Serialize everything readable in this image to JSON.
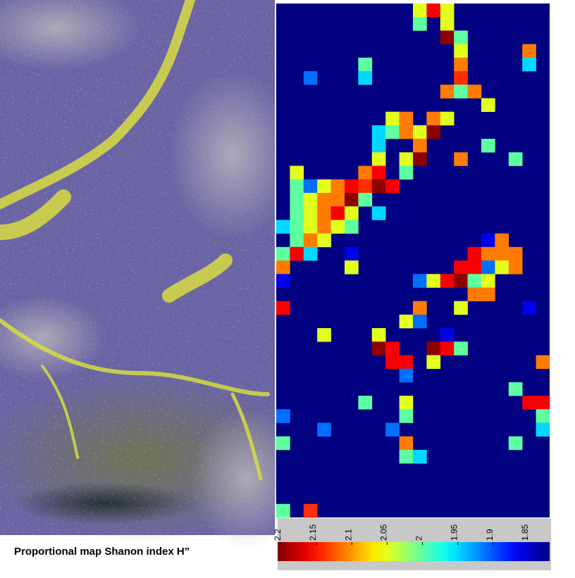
{
  "chart_data": {
    "type": "heatmap",
    "caption": "Proportional map Shanon index H”",
    "rows": 38,
    "cols": 20,
    "background_value": 1.82,
    "clim": [
      1.82,
      2.205
    ],
    "colormap": "jet",
    "colorbar_reversed": true,
    "colorbar_ticks": [
      2.2,
      2.15,
      2.1,
      2.05,
      2,
      1.95,
      1.9,
      1.85
    ],
    "cells": [
      {
        "row": 0,
        "col": 10,
        "value": 2.05
      },
      {
        "row": 0,
        "col": 11,
        "value": 2.16
      },
      {
        "row": 0,
        "col": 12,
        "value": 2.05
      },
      {
        "row": 1,
        "col": 10,
        "value": 2.0
      },
      {
        "row": 1,
        "col": 12,
        "value": 2.05
      },
      {
        "row": 2,
        "col": 12,
        "value": 2.2
      },
      {
        "row": 2,
        "col": 13,
        "value": 2.0
      },
      {
        "row": 3,
        "col": 13,
        "value": 2.05
      },
      {
        "row": 3,
        "col": 18,
        "value": 2.11
      },
      {
        "row": 4,
        "col": 6,
        "value": 2.0
      },
      {
        "row": 4,
        "col": 13,
        "value": 2.11
      },
      {
        "row": 4,
        "col": 18,
        "value": 1.95
      },
      {
        "row": 5,
        "col": 2,
        "value": 1.91
      },
      {
        "row": 5,
        "col": 6,
        "value": 1.95
      },
      {
        "row": 5,
        "col": 13,
        "value": 2.14
      },
      {
        "row": 6,
        "col": 12,
        "value": 2.11
      },
      {
        "row": 6,
        "col": 13,
        "value": 2.0
      },
      {
        "row": 6,
        "col": 14,
        "value": 2.11
      },
      {
        "row": 7,
        "col": 15,
        "value": 2.05
      },
      {
        "row": 8,
        "col": 8,
        "value": 2.05
      },
      {
        "row": 8,
        "col": 9,
        "value": 2.11
      },
      {
        "row": 8,
        "col": 11,
        "value": 2.11
      },
      {
        "row": 8,
        "col": 12,
        "value": 2.05
      },
      {
        "row": 9,
        "col": 7,
        "value": 1.95
      },
      {
        "row": 9,
        "col": 8,
        "value": 2.0
      },
      {
        "row": 9,
        "col": 9,
        "value": 2.11
      },
      {
        "row": 9,
        "col": 10,
        "value": 2.05
      },
      {
        "row": 9,
        "col": 11,
        "value": 2.2
      },
      {
        "row": 10,
        "col": 7,
        "value": 1.95
      },
      {
        "row": 10,
        "col": 10,
        "value": 2.11
      },
      {
        "row": 10,
        "col": 15,
        "value": 2.0
      },
      {
        "row": 11,
        "col": 7,
        "value": 2.05
      },
      {
        "row": 11,
        "col": 9,
        "value": 2.05
      },
      {
        "row": 11,
        "col": 10,
        "value": 2.2
      },
      {
        "row": 11,
        "col": 13,
        "value": 2.11
      },
      {
        "row": 11,
        "col": 17,
        "value": 2.0
      },
      {
        "row": 12,
        "col": 1,
        "value": 2.05
      },
      {
        "row": 12,
        "col": 6,
        "value": 2.11
      },
      {
        "row": 12,
        "col": 7,
        "value": 2.16
      },
      {
        "row": 12,
        "col": 9,
        "value": 2.0
      },
      {
        "row": 13,
        "col": 1,
        "value": 2.0
      },
      {
        "row": 13,
        "col": 2,
        "value": 1.91
      },
      {
        "row": 13,
        "col": 3,
        "value": 2.05
      },
      {
        "row": 13,
        "col": 4,
        "value": 2.11
      },
      {
        "row": 13,
        "col": 5,
        "value": 2.16
      },
      {
        "row": 13,
        "col": 6,
        "value": 2.14
      },
      {
        "row": 13,
        "col": 7,
        "value": 2.2
      },
      {
        "row": 13,
        "col": 8,
        "value": 2.16
      },
      {
        "row": 14,
        "col": 1,
        "value": 2.0
      },
      {
        "row": 14,
        "col": 2,
        "value": 2.05
      },
      {
        "row": 14,
        "col": 3,
        "value": 2.11
      },
      {
        "row": 14,
        "col": 4,
        "value": 2.11
      },
      {
        "row": 14,
        "col": 5,
        "value": 2.2
      },
      {
        "row": 14,
        "col": 6,
        "value": 2.0
      },
      {
        "row": 15,
        "col": 1,
        "value": 2.0
      },
      {
        "row": 15,
        "col": 2,
        "value": 2.05
      },
      {
        "row": 15,
        "col": 3,
        "value": 2.11
      },
      {
        "row": 15,
        "col": 4,
        "value": 2.16
      },
      {
        "row": 15,
        "col": 5,
        "value": 2.05
      },
      {
        "row": 15,
        "col": 7,
        "value": 1.95
      },
      {
        "row": 16,
        "col": 0,
        "value": 1.95
      },
      {
        "row": 16,
        "col": 1,
        "value": 2.0
      },
      {
        "row": 16,
        "col": 2,
        "value": 2.05
      },
      {
        "row": 16,
        "col": 3,
        "value": 2.11
      },
      {
        "row": 16,
        "col": 4,
        "value": 2.05
      },
      {
        "row": 16,
        "col": 5,
        "value": 2.0
      },
      {
        "row": 17,
        "col": 1,
        "value": 2.0
      },
      {
        "row": 17,
        "col": 2,
        "value": 2.11
      },
      {
        "row": 17,
        "col": 3,
        "value": 2.05
      },
      {
        "row": 17,
        "col": 15,
        "value": 1.86
      },
      {
        "row": 17,
        "col": 16,
        "value": 2.11
      },
      {
        "row": 18,
        "col": 0,
        "value": 2.0
      },
      {
        "row": 18,
        "col": 1,
        "value": 2.16
      },
      {
        "row": 18,
        "col": 2,
        "value": 1.95
      },
      {
        "row": 18,
        "col": 5,
        "value": 1.86
      },
      {
        "row": 18,
        "col": 14,
        "value": 2.16
      },
      {
        "row": 18,
        "col": 15,
        "value": 2.11
      },
      {
        "row": 18,
        "col": 16,
        "value": 2.11
      },
      {
        "row": 18,
        "col": 17,
        "value": 2.11
      },
      {
        "row": 19,
        "col": 0,
        "value": 2.11
      },
      {
        "row": 19,
        "col": 5,
        "value": 2.05
      },
      {
        "row": 19,
        "col": 13,
        "value": 2.16
      },
      {
        "row": 19,
        "col": 14,
        "value": 2.16
      },
      {
        "row": 19,
        "col": 15,
        "value": 1.91
      },
      {
        "row": 19,
        "col": 16,
        "value": 2.05
      },
      {
        "row": 19,
        "col": 17,
        "value": 2.11
      },
      {
        "row": 20,
        "col": 0,
        "value": 1.86
      },
      {
        "row": 20,
        "col": 10,
        "value": 1.91
      },
      {
        "row": 20,
        "col": 11,
        "value": 2.05
      },
      {
        "row": 20,
        "col": 12,
        "value": 2.16
      },
      {
        "row": 20,
        "col": 13,
        "value": 2.2
      },
      {
        "row": 20,
        "col": 14,
        "value": 2.0
      },
      {
        "row": 20,
        "col": 15,
        "value": 2.05
      },
      {
        "row": 21,
        "col": 14,
        "value": 2.11
      },
      {
        "row": 21,
        "col": 15,
        "value": 2.11
      },
      {
        "row": 22,
        "col": 0,
        "value": 2.16
      },
      {
        "row": 22,
        "col": 10,
        "value": 2.11
      },
      {
        "row": 22,
        "col": 13,
        "value": 2.05
      },
      {
        "row": 22,
        "col": 18,
        "value": 1.86
      },
      {
        "row": 23,
        "col": 9,
        "value": 2.05
      },
      {
        "row": 23,
        "col": 10,
        "value": 1.91
      },
      {
        "row": 24,
        "col": 3,
        "value": 2.05
      },
      {
        "row": 24,
        "col": 7,
        "value": 2.05
      },
      {
        "row": 24,
        "col": 12,
        "value": 1.86
      },
      {
        "row": 25,
        "col": 7,
        "value": 2.2
      },
      {
        "row": 25,
        "col": 8,
        "value": 2.16
      },
      {
        "row": 25,
        "col": 11,
        "value": 2.2
      },
      {
        "row": 25,
        "col": 12,
        "value": 2.16
      },
      {
        "row": 25,
        "col": 13,
        "value": 2.0
      },
      {
        "row": 26,
        "col": 8,
        "value": 2.16
      },
      {
        "row": 26,
        "col": 9,
        "value": 2.16
      },
      {
        "row": 26,
        "col": 11,
        "value": 2.05
      },
      {
        "row": 26,
        "col": 19,
        "value": 2.11
      },
      {
        "row": 27,
        "col": 9,
        "value": 1.91
      },
      {
        "row": 28,
        "col": 17,
        "value": 2.0
      },
      {
        "row": 29,
        "col": 6,
        "value": 2.0
      },
      {
        "row": 29,
        "col": 9,
        "value": 2.05
      },
      {
        "row": 29,
        "col": 18,
        "value": 2.16
      },
      {
        "row": 29,
        "col": 19,
        "value": 2.16
      },
      {
        "row": 30,
        "col": 0,
        "value": 1.91
      },
      {
        "row": 30,
        "col": 9,
        "value": 2.0
      },
      {
        "row": 30,
        "col": 19,
        "value": 2.0
      },
      {
        "row": 31,
        "col": 3,
        "value": 1.91
      },
      {
        "row": 31,
        "col": 8,
        "value": 1.91
      },
      {
        "row": 31,
        "col": 19,
        "value": 1.95
      },
      {
        "row": 32,
        "col": 0,
        "value": 2.0
      },
      {
        "row": 32,
        "col": 9,
        "value": 2.11
      },
      {
        "row": 32,
        "col": 17,
        "value": 2.0
      },
      {
        "row": 33,
        "col": 9,
        "value": 2.0
      },
      {
        "row": 33,
        "col": 10,
        "value": 1.95
      },
      {
        "row": 37,
        "col": 0,
        "value": 2.0
      },
      {
        "row": 37,
        "col": 2,
        "value": 2.14
      }
    ]
  }
}
